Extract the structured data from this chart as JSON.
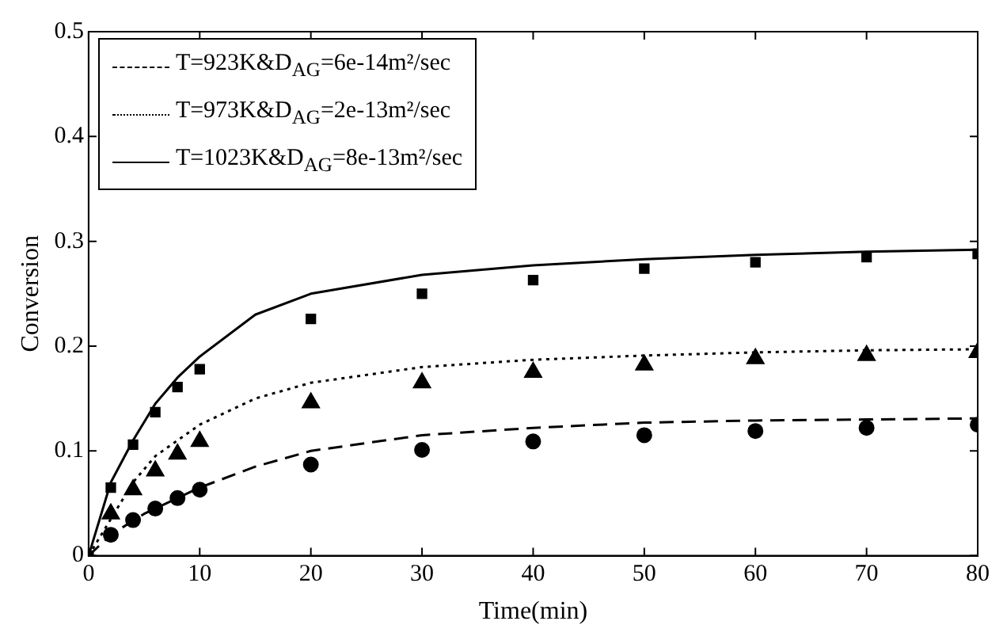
{
  "chart_data": {
    "type": "line",
    "xlabel": "Time(min)",
    "ylabel": "Conversion",
    "xlim": [
      0,
      80
    ],
    "xticks": [
      0,
      10,
      20,
      30,
      40,
      50,
      60,
      70,
      80
    ],
    "ylim": [
      0,
      0.5
    ],
    "yticks": [
      0,
      0.1,
      0.2,
      0.3,
      0.4,
      0.5
    ],
    "legend": "top left",
    "series": [
      {
        "name": "T=923K&D$_{AG}$=6e-14m²/sec",
        "type": "line",
        "color": "#000000",
        "line_style": "dashed",
        "marker": "none",
        "x": [
          0,
          2,
          5,
          10,
          15,
          20,
          30,
          40,
          50,
          60,
          70,
          80
        ],
        "values": [
          0,
          0.02,
          0.04,
          0.065,
          0.085,
          0.1,
          0.115,
          0.122,
          0.127,
          0.129,
          0.13,
          0.131
        ]
      },
      {
        "name": "T=973K&D$_{AG}$=2e-13m²/sec",
        "type": "line",
        "color": "#000000",
        "line_style": "dotted",
        "marker": "none",
        "x": [
          0,
          2,
          4,
          6,
          10,
          15,
          20,
          30,
          40,
          50,
          60,
          70,
          80
        ],
        "values": [
          0,
          0.035,
          0.07,
          0.095,
          0.125,
          0.15,
          0.165,
          0.18,
          0.187,
          0.191,
          0.194,
          0.196,
          0.197
        ]
      },
      {
        "name": "T=1023K&D$_{AG}$=8e-13m²/sec",
        "type": "line",
        "color": "#000000",
        "line_style": "solid",
        "marker": "none",
        "x": [
          0,
          2,
          4,
          6,
          8,
          10,
          15,
          20,
          30,
          40,
          50,
          60,
          70,
          80
        ],
        "values": [
          0,
          0.07,
          0.11,
          0.145,
          0.17,
          0.19,
          0.23,
          0.25,
          0.268,
          0.277,
          0.283,
          0.287,
          0.29,
          0.292
        ]
      },
      {
        "type": "scatter",
        "color": "#000000",
        "marker": "circle",
        "x": [
          2,
          4,
          6,
          8,
          10,
          20,
          30,
          40,
          50,
          60,
          70,
          80
        ],
        "values": [
          0.02,
          0.034,
          0.045,
          0.055,
          0.063,
          0.087,
          0.101,
          0.109,
          0.115,
          0.119,
          0.122,
          0.125
        ]
      },
      {
        "type": "scatter",
        "color": "#000000",
        "marker": "triangle",
        "x": [
          2,
          4,
          6,
          8,
          10,
          20,
          30,
          40,
          50,
          60,
          70,
          80
        ],
        "values": [
          0.04,
          0.063,
          0.081,
          0.097,
          0.109,
          0.146,
          0.165,
          0.175,
          0.182,
          0.188,
          0.191,
          0.194
        ]
      },
      {
        "type": "scatter",
        "color": "#000000",
        "marker": "square",
        "x": [
          0,
          2,
          4,
          6,
          8,
          10,
          20,
          30,
          40,
          50,
          60,
          70,
          80
        ],
        "values": [
          0,
          0.065,
          0.106,
          0.137,
          0.161,
          0.178,
          0.226,
          0.25,
          0.263,
          0.274,
          0.28,
          0.285,
          0.288
        ]
      }
    ]
  }
}
